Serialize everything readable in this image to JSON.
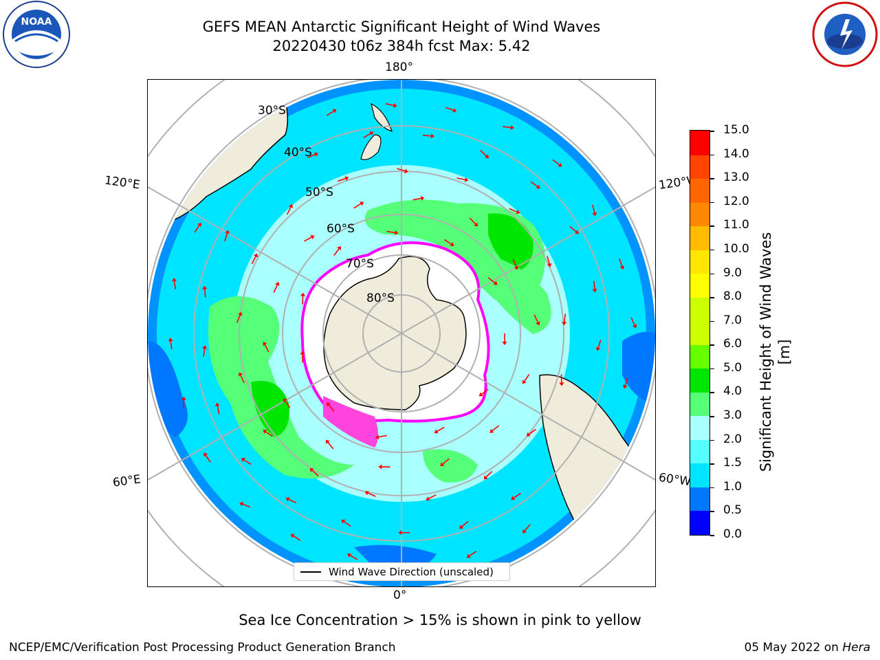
{
  "title": {
    "line1": "GEFS MEAN Antarctic Significant Height of Wind Waves",
    "line2": "20220430 t06z 384h fcst   Max: 5.42"
  },
  "logos": {
    "left": "NOAA",
    "right": "NATIONAL WEATHER SERVICE"
  },
  "map": {
    "projection": "south-polar-stereographic",
    "longitude_labels": [
      "180°",
      "120°E",
      "120°W",
      "60°E",
      "60°W",
      "0°"
    ],
    "latitude_labels": [
      "30°S",
      "40°S",
      "50°S",
      "60°S",
      "70°S",
      "80°S"
    ],
    "legend_label": "Wind Wave Direction (unscaled)",
    "colors": {
      "land": "#efecdc",
      "ice_region": "#ffffff",
      "ice_edge": "#ff00ff",
      "arrows": "#ff0000",
      "gridlines": "#b0b0b0",
      "coastline": "#000000"
    }
  },
  "colorbar": {
    "title": "Significant Height of Wind Waves [m]",
    "tick_labels": [
      "0.0",
      "0.5",
      "1.0",
      "1.5",
      "2.0",
      "3.0",
      "4.0",
      "5.0",
      "6.0",
      "7.0",
      "8.0",
      "9.0",
      "10.0",
      "11.0",
      "12.0",
      "13.0",
      "14.0",
      "15.0"
    ],
    "colors": [
      "#0000ff",
      "#0077ff",
      "#00e5ff",
      "#55ffff",
      "#aaffff",
      "#55ff77",
      "#00e600",
      "#66ff00",
      "#ccff00",
      "#ccff00",
      "#ffff00",
      "#ffe600",
      "#ffbb00",
      "#ff8800",
      "#ff6600",
      "#ff4400",
      "#ff0000"
    ]
  },
  "footnote": "Sea Ice Concentration > 15% is shown in pink to yellow",
  "footer": {
    "left": "NCEP/EMC/Verification Post Processing Product Generation Branch",
    "right_date": "05 May 2022 on ",
    "right_host": "Hera"
  }
}
